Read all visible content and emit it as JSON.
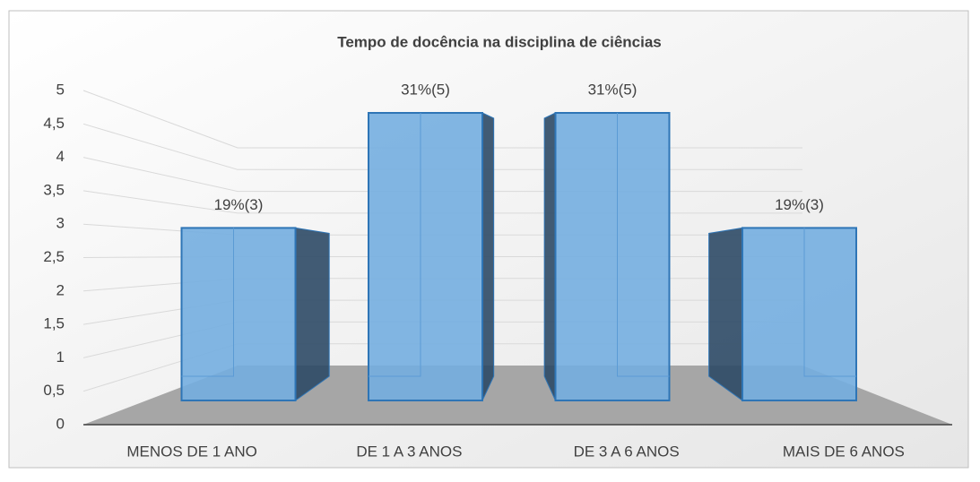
{
  "chart_data": {
    "type": "bar",
    "title": "Tempo de docência na disciplina de ciências",
    "categories": [
      "MENOS DE 1 ANO",
      "DE 1 A 3 ANOS",
      "DE 3 A 6 ANOS",
      "MAIS DE 6 ANOS"
    ],
    "values": [
      3,
      5,
      5,
      3
    ],
    "value_labels": [
      "19%(3)",
      "31%(5)",
      "31%(5)",
      "19%(3)"
    ],
    "color": "#74aee0",
    "ylim": [
      0,
      5
    ],
    "yticks": [
      0,
      {
        "value": 0.5,
        "label": "0,5"
      },
      1,
      {
        "value": 1.5,
        "label": "1,5"
      },
      2,
      {
        "value": 2.5,
        "label": "2,5"
      },
      3,
      {
        "value": 3.5,
        "label": "3,5"
      },
      4,
      {
        "value": 4.5,
        "label": "4,5"
      },
      5
    ],
    "grid": true
  }
}
